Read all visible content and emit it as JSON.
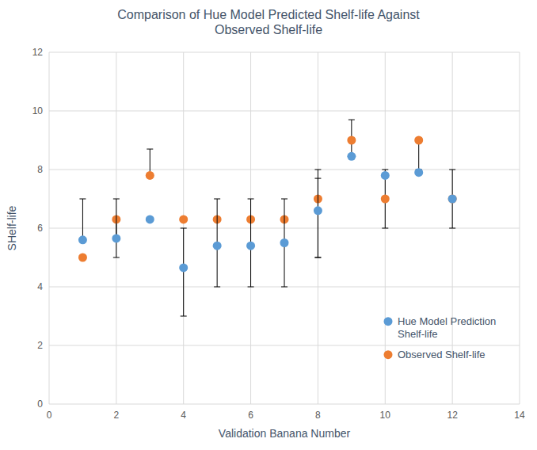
{
  "chart_data": {
    "type": "scatter",
    "title": "Comparison of Hue Model Predicted Shelf-life Against\nObserved Shelf-life",
    "xlabel": "Validation Banana Number",
    "ylabel": "SHelf-life",
    "xlim": [
      0,
      14
    ],
    "ylim": [
      0,
      12
    ],
    "xticks": [
      0,
      2,
      4,
      6,
      8,
      10,
      12,
      14
    ],
    "yticks": [
      0,
      2,
      4,
      6,
      8,
      10,
      12
    ],
    "grid": true,
    "legend": "lower right",
    "series": [
      {
        "name": "Hue Model Prediction\nShelf-life",
        "color": "#5B9BD5",
        "marker": "circle",
        "x": [
          1,
          2,
          3,
          4,
          5,
          6,
          7,
          8,
          9,
          10,
          11,
          12
        ],
        "values": [
          5.6,
          5.65,
          6.3,
          4.65,
          5.4,
          5.4,
          5.5,
          6.6,
          8.45,
          7.8,
          7.9,
          7.0
        ],
        "error_lo": [
          0.0,
          0.0,
          0.0,
          1.65,
          1.4,
          1.4,
          1.5,
          1.6,
          0.0,
          0.0,
          0.0,
          0.0
        ],
        "error_hi": [
          1.4,
          1.35,
          0.0,
          1.35,
          1.6,
          1.6,
          1.5,
          1.4,
          0.0,
          0.0,
          0.0,
          0.0
        ]
      },
      {
        "name": "Observed Shelf-life",
        "color": "#ED7D31",
        "marker": "circle",
        "x": [
          1,
          2,
          3,
          4,
          5,
          6,
          7,
          8,
          9,
          10,
          11,
          12
        ],
        "values": [
          5.0,
          6.3,
          7.8,
          6.3,
          6.3,
          6.3,
          6.3,
          7.0,
          9.0,
          7.0,
          9.0,
          7.0
        ],
        "error_lo": [
          0.0,
          1.3,
          0.0,
          0.0,
          0.0,
          0.0,
          0.0,
          2.0,
          0.5,
          1.0,
          1.0,
          1.0
        ],
        "error_hi": [
          0.0,
          0.0,
          0.9,
          0.0,
          0.0,
          0.0,
          0.0,
          0.7,
          0.7,
          1.0,
          0.0,
          1.0
        ]
      }
    ]
  }
}
